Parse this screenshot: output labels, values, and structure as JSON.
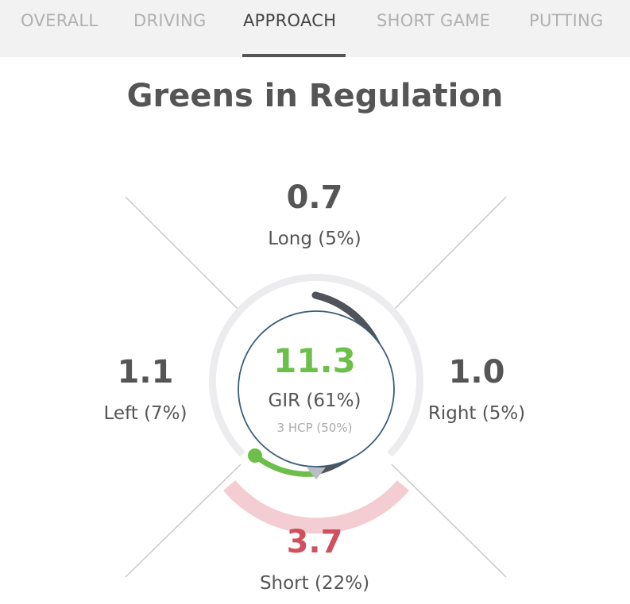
{
  "tabs": [
    {
      "label": "OVERALL",
      "active": false
    },
    {
      "label": "DRIVING",
      "active": false
    },
    {
      "label": "APPROACH",
      "active": true
    },
    {
      "label": "SHORT GAME",
      "active": false
    },
    {
      "label": "PUTTING",
      "active": false
    }
  ],
  "title": "Greens in Regulation",
  "long": {
    "value": "0.7",
    "label": "Long (5%)"
  },
  "left": {
    "value": "1.1",
    "label": "Left (7%)"
  },
  "right": {
    "value": "1.0",
    "label": "Right (5%)"
  },
  "short": {
    "value": "3.7",
    "label": "Short (22%)"
  },
  "center": {
    "value": "11.3",
    "label": "GIR (61%)",
    "hcp": "3 HCP (50%)"
  },
  "colors": {
    "gir_green": "#6cc04a",
    "short_red": "#d0505f",
    "short_band": "#f4cdd2",
    "dark_arc": "#505359",
    "track": "#ececef",
    "circle_stroke": "#3a5e7a",
    "marker": "#b9bdc4"
  }
}
